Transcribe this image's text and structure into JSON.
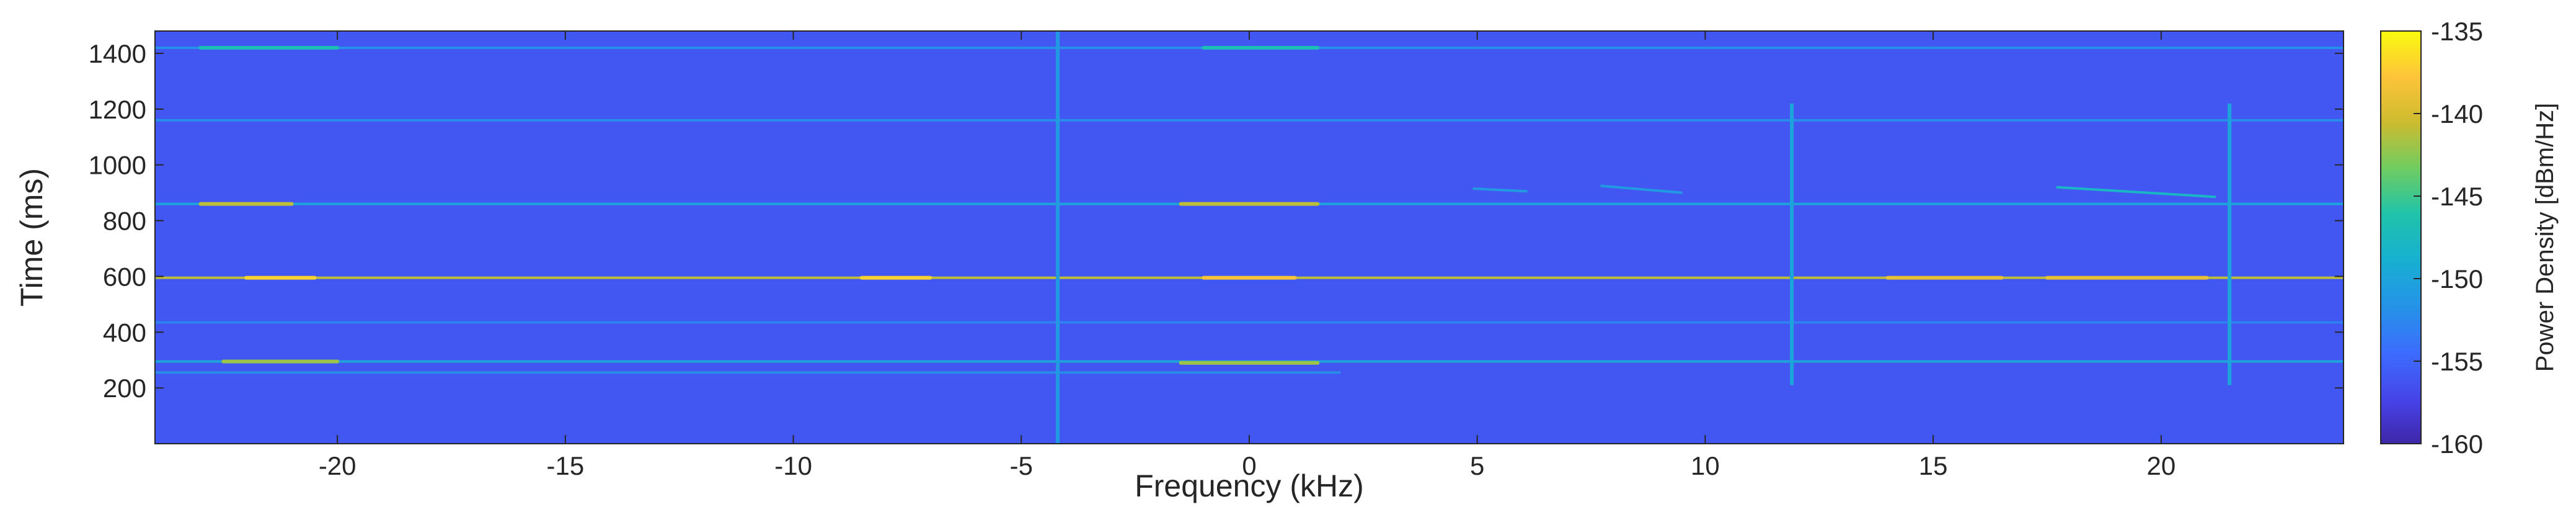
{
  "chart_data": {
    "type": "heatmap",
    "title": "",
    "xlabel": "Frequency (kHz)",
    "ylabel": "Time (ms)",
    "xlim": [
      -24,
      24
    ],
    "ylim": [
      0,
      1480
    ],
    "xticks": [
      -20,
      -15,
      -10,
      -5,
      0,
      5,
      10,
      15,
      20
    ],
    "yticks": [
      200,
      400,
      600,
      800,
      1000,
      1200,
      1400
    ],
    "grid": false,
    "colorbar": {
      "label": "Power Density [dBm/Hz]",
      "range": [
        -160,
        -135
      ],
      "ticks": [
        -135,
        -140,
        -145,
        -150,
        -155,
        -160
      ],
      "colormap": "parula"
    },
    "background_level": -156,
    "features": [
      {
        "kind": "horizontal_line",
        "time": 595,
        "freq_range": [
          -24,
          24
        ],
        "level": -141
      },
      {
        "kind": "horizontal_line",
        "time": 860,
        "freq_range": [
          -24,
          24
        ],
        "level": -150
      },
      {
        "kind": "horizontal_line",
        "time": 295,
        "freq_range": [
          -24,
          24
        ],
        "level": -150
      },
      {
        "kind": "horizontal_line",
        "time": 1420,
        "freq_range": [
          -24,
          24
        ],
        "level": -152
      },
      {
        "kind": "horizontal_line",
        "time": 1160,
        "freq_range": [
          -24,
          24
        ],
        "level": -152
      },
      {
        "kind": "horizontal_line",
        "time": 435,
        "freq_range": [
          -24,
          24
        ],
        "level": -153
      },
      {
        "kind": "horizontal_line",
        "time": 255,
        "freq_range": [
          -24,
          2
        ],
        "level": -152
      },
      {
        "kind": "vertical_line",
        "freq": -4.2,
        "time_range": [
          0,
          1480
        ],
        "level": -151
      },
      {
        "kind": "vertical_line",
        "freq": 11.9,
        "time_range": [
          210,
          1220
        ],
        "level": -150
      },
      {
        "kind": "vertical_line",
        "freq": 21.5,
        "time_range": [
          210,
          1220
        ],
        "level": -150
      },
      {
        "kind": "hotspot",
        "freq_range": [
          -23,
          -21
        ],
        "time": 860,
        "level": -141
      },
      {
        "kind": "hotspot",
        "freq_range": [
          -1.5,
          1.5
        ],
        "time": 860,
        "level": -141
      },
      {
        "kind": "hotspot",
        "freq_range": [
          -22.5,
          -20
        ],
        "time": 295,
        "level": -142
      },
      {
        "kind": "hotspot",
        "freq_range": [
          -1.5,
          1.5
        ],
        "time": 290,
        "level": -142
      },
      {
        "kind": "hotspot",
        "freq_range": [
          -22,
          -20.5
        ],
        "time": 595,
        "level": -137
      },
      {
        "kind": "hotspot",
        "freq_range": [
          -8.5,
          -7
        ],
        "time": 595,
        "level": -137
      },
      {
        "kind": "hotspot",
        "freq_range": [
          -1,
          1
        ],
        "time": 595,
        "level": -138
      },
      {
        "kind": "hotspot",
        "freq_range": [
          14,
          16.5
        ],
        "time": 595,
        "level": -139
      },
      {
        "kind": "hotspot",
        "freq_range": [
          17.5,
          21
        ],
        "time": 595,
        "level": -139
      },
      {
        "kind": "hotspot",
        "freq_range": [
          -23,
          -20
        ],
        "time": 1420,
        "level": -147
      },
      {
        "kind": "hotspot",
        "freq_range": [
          -1,
          1.5
        ],
        "time": 1420,
        "level": -147
      },
      {
        "kind": "chirp",
        "freq_range": [
          17.7,
          21.2
        ],
        "time_range": [
          920,
          885
        ],
        "level": -148
      },
      {
        "kind": "chirp",
        "freq_range": [
          7.7,
          9.5
        ],
        "time_range": [
          925,
          900
        ],
        "level": -151
      },
      {
        "kind": "chirp",
        "freq_range": [
          4.9,
          6.1
        ],
        "time_range": [
          915,
          905
        ],
        "level": -151
      }
    ]
  }
}
